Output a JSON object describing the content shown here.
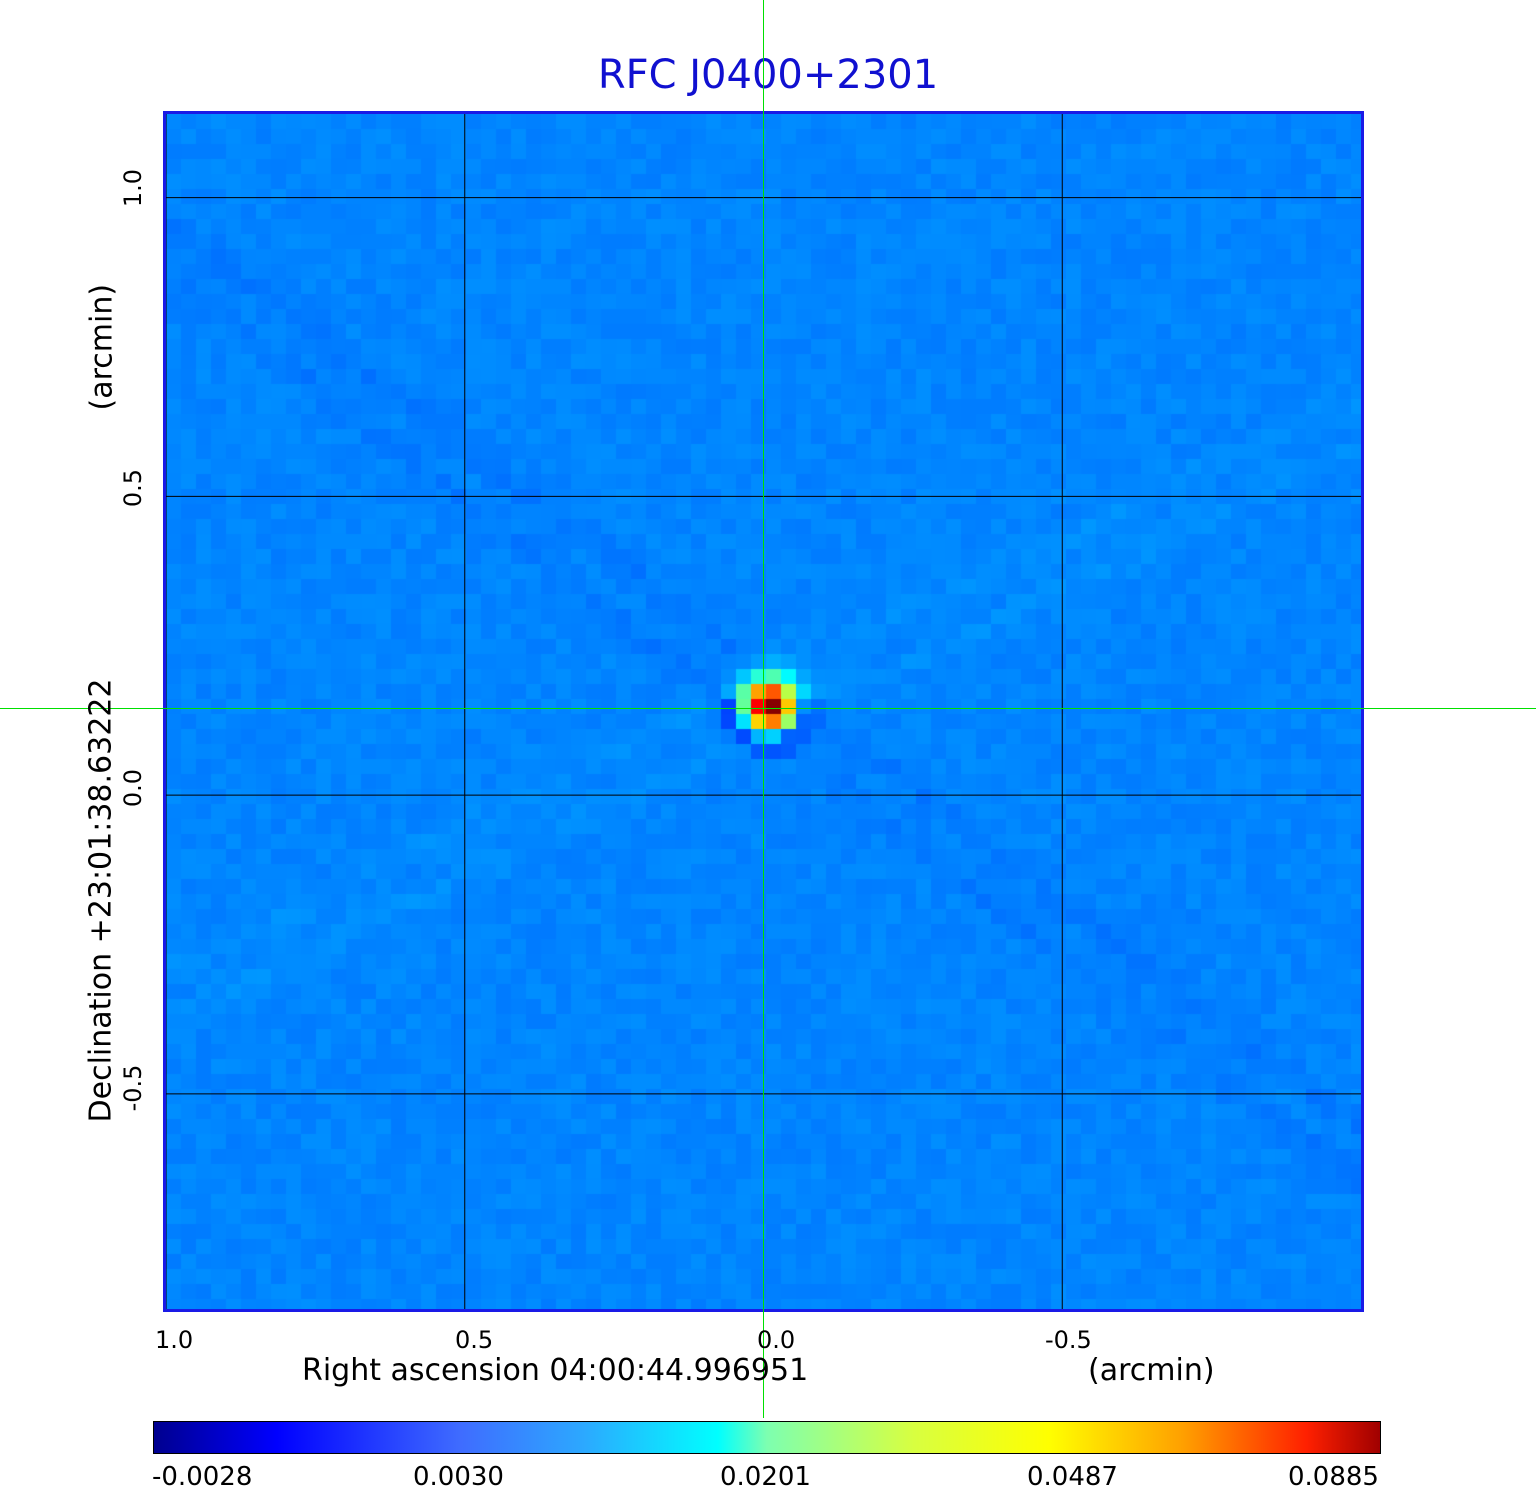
{
  "chart_data": {
    "type": "heatmap",
    "title": "RFC J0400+2301",
    "xlabel": "Right ascension  04:00:44.996951",
    "xunit": "(arcmin)",
    "ylabel": "Declination  +23:01:38.63222",
    "yunit": "(arcmin)",
    "x_ticks": [
      "1.0",
      "0.5",
      "0.0",
      "-0.5"
    ],
    "y_ticks": [
      "1.0",
      "0.5",
      "0.0",
      "-0.5"
    ],
    "xlim": [
      1.0,
      -1.0
    ],
    "ylim": [
      -0.86,
      1.14
    ],
    "grid": true,
    "peak": {
      "x": -0.01,
      "y": 0.15,
      "value": 0.0885
    },
    "crosshair": {
      "x": 0.0,
      "y": 0.145
    },
    "colormap": "jet",
    "colorbar_range": [
      -0.0028,
      0.0885
    ],
    "colorbar_ticks": [
      "-0.0028",
      "0.0030",
      "0.0201",
      "0.0487",
      "0.0885"
    ],
    "colors": {
      "title": "#1010d0",
      "frame": "#1a1ae6",
      "crosshair": "#00e000",
      "grid": "#000000"
    }
  }
}
